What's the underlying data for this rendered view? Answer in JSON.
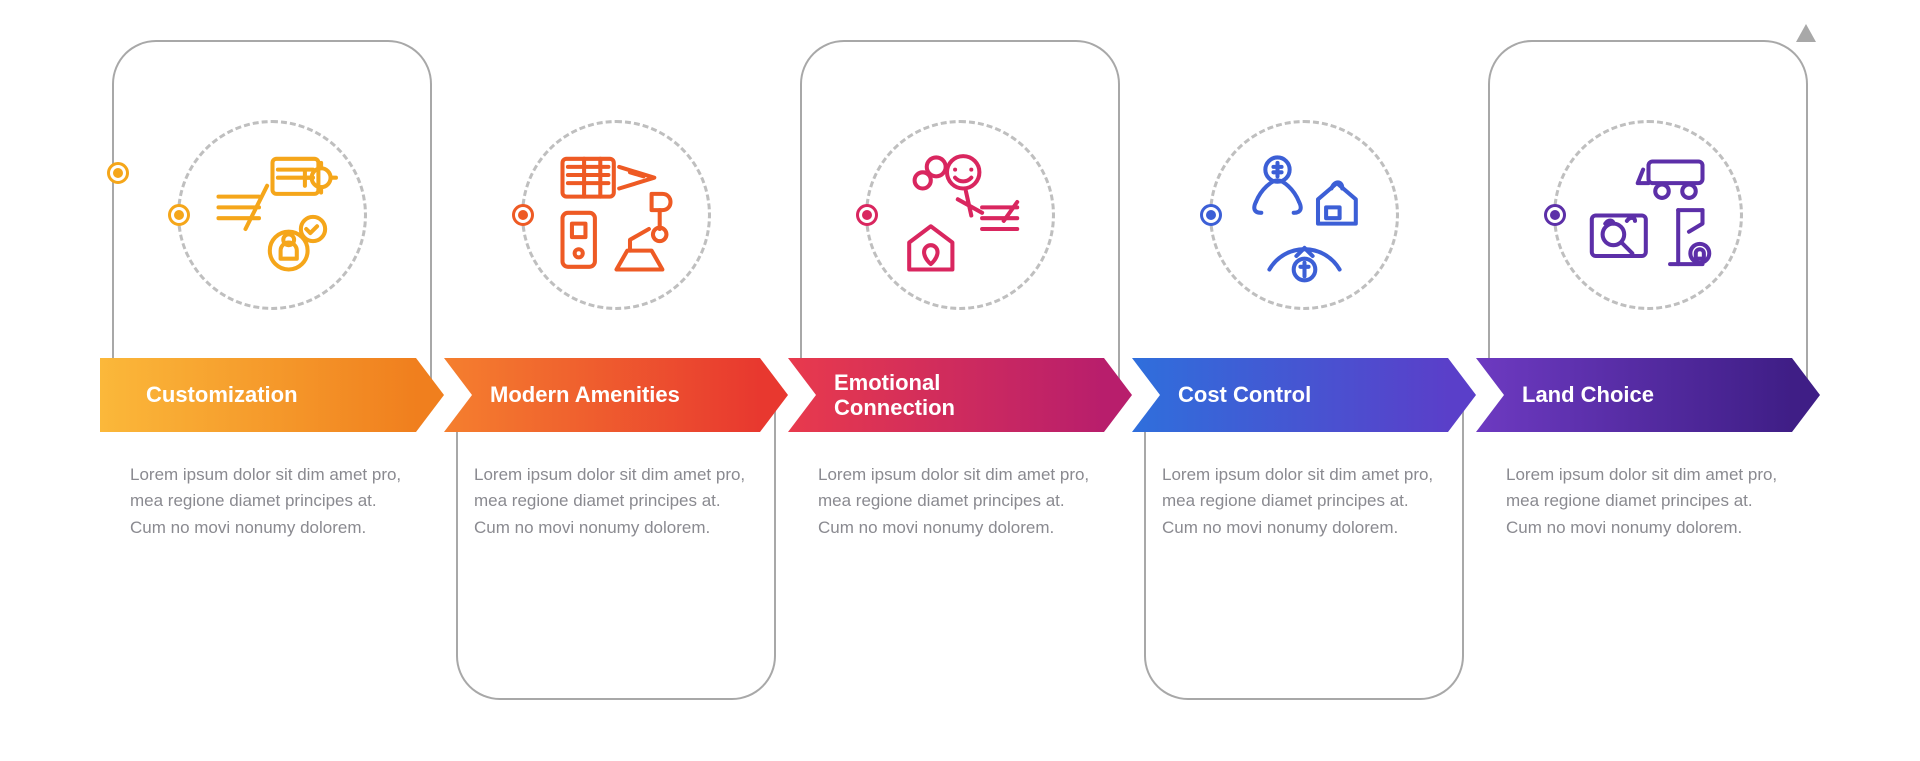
{
  "infographic": {
    "type": "process-infographic",
    "layout": "horizontal-weave",
    "background_color": "#ffffff",
    "frame_border_color": "#a8a8a8",
    "frame_border_width": 2,
    "frame_corner_radius": 44,
    "icon_circle_border_color": "#bfbfbf",
    "icon_circle_dashed": true,
    "description_text_color": "#8a8a90",
    "description_fontsize": 17,
    "title_fontsize": 22,
    "title_font_weight": 700,
    "title_color": "#ffffff",
    "arrow_height": 74,
    "steps": [
      {
        "title": "Customization",
        "description": "Lorem ipsum dolor sit dim amet pro, mea regione diamet principes at. Cum no movi nonumy dolorem.",
        "frame_side": "top",
        "icon_name": "customization-icon",
        "accent_color": "#f5a61a",
        "gradient_start": "#fbb83a",
        "gradient_end": "#f07f1e",
        "icon_stroke": "#f5a61a"
      },
      {
        "title": "Modern Amenities",
        "description": "Lorem ipsum dolor sit dim amet pro, mea regione diamet principes at. Cum no movi nonumy dolorem.",
        "frame_side": "bottom",
        "icon_name": "amenities-icon",
        "accent_color": "#ee5a24",
        "gradient_start": "#f57f2e",
        "gradient_end": "#e8382f",
        "icon_stroke": "#ee5a24"
      },
      {
        "title": "Emotional Connection",
        "description": "Lorem ipsum dolor sit dim amet pro, mea regione diamet principes at. Cum no movi nonumy dolorem.",
        "frame_side": "top",
        "icon_name": "emotional-icon",
        "accent_color": "#d9265f",
        "gradient_start": "#e83a4d",
        "gradient_end": "#b81e6c",
        "icon_stroke": "#d9265f"
      },
      {
        "title": "Cost Control",
        "description": "Lorem ipsum dolor sit dim amet pro, mea regione diamet principes at. Cum no movi nonumy dolorem.",
        "frame_side": "bottom",
        "icon_name": "cost-icon",
        "accent_color": "#3c5fd6",
        "gradient_start": "#2f6fdc",
        "gradient_end": "#5a3fc9",
        "icon_stroke": "#3c5fd6"
      },
      {
        "title": "Land Choice",
        "description": "Lorem ipsum dolor sit dim amet pro, mea regione diamet principes at. Cum no movi nonumy dolorem.",
        "frame_side": "top",
        "icon_name": "land-icon",
        "accent_color": "#5c2fa8",
        "gradient_start": "#6d3ac1",
        "gradient_end": "#3f1e86",
        "icon_stroke": "#5c2fa8"
      }
    ]
  }
}
